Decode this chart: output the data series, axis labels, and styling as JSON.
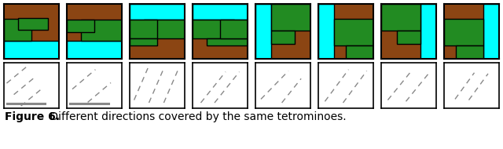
{
  "figure_label": "Figure 6.",
  "figure_caption": " Different directions covered by the same tetrominoes.",
  "colors": {
    "brown": "#8B4513",
    "green": "#228B22",
    "cyan": "#00FFFF",
    "outline": "#000000",
    "white": "#FFFFFF",
    "gray_line": "#888888"
  },
  "n_cols": 8,
  "caption_fontsize": 10
}
